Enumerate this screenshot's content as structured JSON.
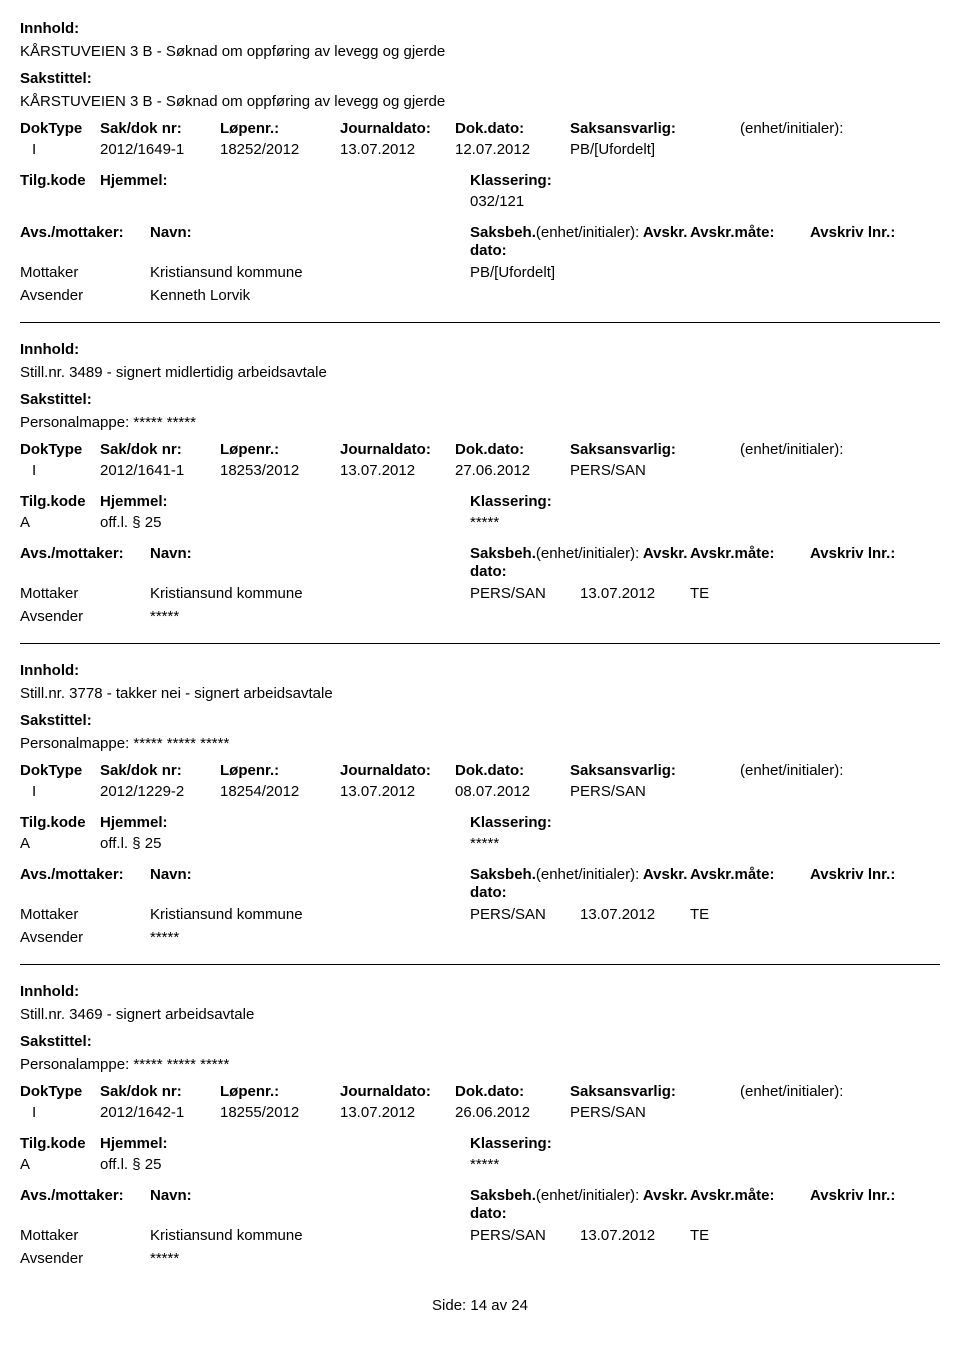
{
  "labels": {
    "innhold": "Innhold:",
    "sakstittel": "Sakstittel:",
    "doktype": "DokType",
    "saknr": "Sak/dok nr:",
    "lopenr": "Løpenr.:",
    "journaldato": "Journaldato:",
    "dokdato": "Dok.dato:",
    "saksansvarlig": "Saksansvarlig:",
    "enhet": "(enhet/initialer):",
    "tilgkode": "Tilg.kode",
    "hjemmel": "Hjemmel:",
    "klassering": "Klassering:",
    "avs_mottaker": "Avs./mottaker:",
    "navn": "Navn:",
    "saksbeh": "Saksbeh.",
    "saksbeh_enhet": "(enhet/initialer):",
    "avskr_dato": "Avskr. dato:",
    "avskr_mate": "Avskr.måte:",
    "avskriv_lnr": "Avskriv lnr.:",
    "mottaker": "Mottaker",
    "avsender": "Avsender"
  },
  "footer": {
    "prefix": "Side:",
    "page": "14",
    "sep": "av",
    "total": "24"
  },
  "records": [
    {
      "innhold": "KÅRSTUVEIEN 3 B - Søknad om oppføring av levegg og gjerde",
      "sakstittel": "KÅRSTUVEIEN 3 B - Søknad om oppføring av levegg og gjerde",
      "doktype": "I",
      "saknr": "2012/1649-1",
      "lopenr": "18252/2012",
      "journaldato": "13.07.2012",
      "dokdato": "12.07.2012",
      "saksansvarlig": "PB/[Ufordelt]",
      "enhet": "",
      "tilgkode": "",
      "hjemmel": "",
      "klassering": "032/121",
      "saksbeh": "PB/[Ufordelt]",
      "avskr_dato": "",
      "avskr_mate": "",
      "mottaker_navn": "Kristiansund kommune",
      "avsender_navn": "Kenneth Lorvik"
    },
    {
      "innhold": "Still.nr. 3489 - signert midlertidig arbeidsavtale",
      "sakstittel": "Personalmappe: ***** *****",
      "doktype": "I",
      "saknr": "2012/1641-1",
      "lopenr": "18253/2012",
      "journaldato": "13.07.2012",
      "dokdato": "27.06.2012",
      "saksansvarlig": "PERS/SAN",
      "enhet": "",
      "tilgkode": "A",
      "hjemmel": "off.l. § 25",
      "klassering": "*****",
      "saksbeh": "PERS/SAN",
      "avskr_dato": "13.07.2012",
      "avskr_mate": "TE",
      "mottaker_navn": "Kristiansund kommune",
      "avsender_navn": "*****"
    },
    {
      "innhold": "Still.nr. 3778 - takker nei - signert  arbeidsavtale",
      "sakstittel": "Personalmappe: ***** ***** *****",
      "doktype": "I",
      "saknr": "2012/1229-2",
      "lopenr": "18254/2012",
      "journaldato": "13.07.2012",
      "dokdato": "08.07.2012",
      "saksansvarlig": "PERS/SAN",
      "enhet": "",
      "tilgkode": "A",
      "hjemmel": "off.l. § 25",
      "klassering": "*****",
      "saksbeh": "PERS/SAN",
      "avskr_dato": "13.07.2012",
      "avskr_mate": "TE",
      "mottaker_navn": "Kristiansund kommune",
      "avsender_navn": "*****"
    },
    {
      "innhold": "Still.nr. 3469 -  signert  arbeidsavtale",
      "sakstittel": "Personalamppe: ***** ***** *****",
      "doktype": "I",
      "saknr": "2012/1642-1",
      "lopenr": "18255/2012",
      "journaldato": "13.07.2012",
      "dokdato": "26.06.2012",
      "saksansvarlig": "PERS/SAN",
      "enhet": "",
      "tilgkode": "A",
      "hjemmel": "off.l. § 25",
      "klassering": "*****",
      "saksbeh": "PERS/SAN",
      "avskr_dato": "13.07.2012",
      "avskr_mate": "TE",
      "mottaker_navn": "Kristiansund kommune",
      "avsender_navn": "*****"
    }
  ]
}
